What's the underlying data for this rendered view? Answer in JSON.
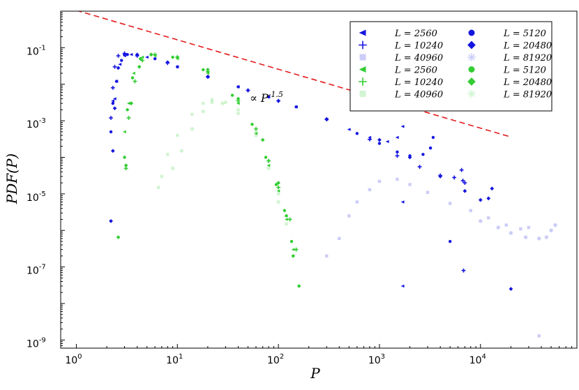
{
  "chart_data": {
    "type": "scatter",
    "title": "",
    "xlabel": "P",
    "ylabel": "PDF(P)",
    "x_scale": "log",
    "y_scale": "log",
    "xlim": [
      0.7,
      90000
    ],
    "ylim": [
      6e-10,
      1
    ],
    "grid": false,
    "legend_position": "top-right",
    "x_ticks": [
      {
        "value": 1,
        "base": "10",
        "exp": "0"
      },
      {
        "value": 10,
        "base": "10",
        "exp": "1"
      },
      {
        "value": 100,
        "base": "10",
        "exp": "2"
      },
      {
        "value": 1000,
        "base": "10",
        "exp": "3"
      },
      {
        "value": 10000,
        "base": "10",
        "exp": "4"
      }
    ],
    "y_ticks": [
      {
        "value": 0.1,
        "base": "10",
        "exp": "-1"
      },
      {
        "value": 0.001,
        "base": "10",
        "exp": "-3"
      },
      {
        "value": 1e-05,
        "base": "10",
        "exp": "-5"
      },
      {
        "value": 1e-07,
        "base": "10",
        "exp": "-7"
      },
      {
        "value": 1e-09,
        "base": "10",
        "exp": "-9"
      }
    ],
    "reference_line": {
      "label": "∝ P^-1.5",
      "prefix": "∝ P",
      "exponent": "-1.5",
      "x": [
        1,
        20000
      ],
      "y": [
        1.05,
        0.00036
      ],
      "color": "#e41a1c"
    },
    "colors": {
      "blue": "#1515e0",
      "green": "#32cd32"
    },
    "series": [
      {
        "name": "L = 2560",
        "group": "blue",
        "marker": "triangle-left",
        "opacity": 1.0,
        "points": [
          [
            2.3,
            0.0035
          ],
          [
            2.4,
            0.004
          ],
          [
            2.5,
            0.012
          ],
          [
            2.7,
            0.035
          ],
          [
            3.0,
            0.06
          ],
          [
            3.5,
            0.065
          ],
          [
            5,
            0.055
          ],
          [
            10,
            0.03
          ],
          [
            20,
            0.016
          ],
          [
            40,
            0.0085
          ],
          [
            80,
            0.0045
          ],
          [
            150,
            0.0024
          ],
          [
            300,
            0.0011
          ],
          [
            500,
            0.00058
          ],
          [
            800,
            0.00035
          ],
          [
            1200,
            0.00027
          ],
          [
            1500,
            0.00035
          ],
          [
            1700,
            0.0007
          ],
          [
            1750,
            0.0025
          ],
          [
            1700,
            6e-06
          ],
          [
            1700,
            3e-08
          ]
        ]
      },
      {
        "name": "L = 5120",
        "group": "blue",
        "marker": "circle",
        "opacity": 1.0,
        "points": [
          [
            2.2,
            0.0005
          ],
          [
            2.3,
            0.003
          ],
          [
            2.5,
            0.012
          ],
          [
            2.8,
            0.045
          ],
          [
            3.2,
            0.065
          ],
          [
            4,
            0.062
          ],
          [
            6,
            0.05
          ],
          [
            10,
            0.03
          ],
          [
            20,
            0.016
          ],
          [
            40,
            0.0085
          ],
          [
            80,
            0.0045
          ],
          [
            150,
            0.0024
          ],
          [
            300,
            0.0011
          ],
          [
            600,
            0.00045
          ],
          [
            1000,
            0.00024
          ],
          [
            1500,
            0.00014
          ],
          [
            2000,
            0.00011
          ],
          [
            2700,
            0.00012
          ],
          [
            3200,
            0.00018
          ],
          [
            3400,
            0.00035
          ],
          [
            5000,
            5e-07
          ]
        ]
      },
      {
        "name": "L = 10240",
        "group": "blue",
        "marker": "plus",
        "opacity": 1.0,
        "points": [
          [
            2.2,
            0.0012
          ],
          [
            2.3,
            0.008
          ],
          [
            2.4,
            0.03
          ],
          [
            2.6,
            0.06
          ],
          [
            3,
            0.07
          ],
          [
            4,
            0.06
          ],
          [
            8,
            0.038
          ],
          [
            20,
            0.016
          ],
          [
            50,
            0.0068
          ],
          [
            100,
            0.0035
          ],
          [
            300,
            0.0011
          ],
          [
            800,
            0.00031
          ],
          [
            1500,
            0.00011
          ],
          [
            2500,
            5.5e-05
          ],
          [
            4000,
            3.2e-05
          ],
          [
            5500,
            2.8e-05
          ],
          [
            6500,
            4.5e-05
          ],
          [
            6700,
            2.3e-05
          ],
          [
            7000,
            2e-05
          ],
          [
            6800,
            8e-08
          ]
        ]
      },
      {
        "name": "L = 20480",
        "group": "blue",
        "marker": "diamond",
        "opacity": 1.0,
        "points": [
          [
            2.2,
            1.8e-06
          ],
          [
            2.3,
            0.00015
          ],
          [
            2.4,
            0.0022
          ],
          [
            2.6,
            0.028
          ],
          [
            3,
            0.065
          ],
          [
            4,
            0.065
          ],
          [
            8,
            0.04
          ],
          [
            20,
            0.016
          ],
          [
            50,
            0.0068
          ],
          [
            100,
            0.0035
          ],
          [
            300,
            0.0011
          ],
          [
            1000,
            0.0003
          ],
          [
            2000,
            0.0001
          ],
          [
            4000,
            3e-05
          ],
          [
            7000,
            1.2e-05
          ],
          [
            10000,
            6.8e-06
          ],
          [
            12000,
            7.5e-06
          ],
          [
            13000,
            1.4e-05
          ],
          [
            20000,
            2.5e-08
          ]
        ]
      },
      {
        "name": "L = 40960",
        "group": "blue",
        "marker": "square",
        "opacity": 0.22,
        "points": [
          [
            300,
            2e-07
          ],
          [
            400,
            6e-07
          ],
          [
            500,
            2.5e-06
          ],
          [
            600,
            6e-06
          ],
          [
            800,
            1.3e-05
          ],
          [
            1000,
            2.2e-05
          ],
          [
            1500,
            2.5e-05
          ],
          [
            2000,
            1.8e-05
          ],
          [
            3000,
            1.1e-05
          ],
          [
            5000,
            5.5e-06
          ],
          [
            8000,
            3.5e-06
          ],
          [
            12000,
            2.2e-06
          ],
          [
            18000,
            1.4e-06
          ],
          [
            25000,
            1.1e-06
          ],
          [
            30000,
            1.2e-06
          ],
          [
            38000,
            1.3e-09
          ]
        ]
      },
      {
        "name": "L = 81920",
        "group": "blue",
        "marker": "asterisk",
        "opacity": 0.22,
        "points": [
          [
            10000,
            1.8e-06
          ],
          [
            15000,
            1.2e-06
          ],
          [
            20000,
            8.5e-07
          ],
          [
            28000,
            6.5e-07
          ],
          [
            38000,
            6e-07
          ],
          [
            45000,
            6.5e-07
          ],
          [
            50000,
            1e-06
          ],
          [
            55000,
            1.4e-06
          ]
        ]
      },
      {
        "name": "L = 2560",
        "group": "green",
        "marker": "triangle-left",
        "opacity": 1.0,
        "points": [
          [
            3.0,
            0.0005
          ],
          [
            3.3,
            0.003
          ],
          [
            3.7,
            0.02
          ],
          [
            4.5,
            0.055
          ],
          [
            6,
            0.06
          ],
          [
            10,
            0.05
          ],
          [
            20,
            0.02
          ],
          [
            40,
            0.003
          ],
          [
            60,
            0.00045
          ],
          [
            80,
            6e-05
          ],
          [
            100,
            1.2e-05
          ],
          [
            120,
            2e-06
          ],
          [
            140,
            3e-07
          ]
        ]
      },
      {
        "name": "L = 5120",
        "group": "green",
        "marker": "circle",
        "opacity": 1.0,
        "points": [
          [
            3.0,
            0.0001
          ],
          [
            3.2,
            0.002
          ],
          [
            3.6,
            0.015
          ],
          [
            4.3,
            0.05
          ],
          [
            5.5,
            0.065
          ],
          [
            9,
            0.055
          ],
          [
            18,
            0.025
          ],
          [
            35,
            0.005
          ],
          [
            55,
            0.0008
          ],
          [
            75,
            0.0001
          ],
          [
            95,
            1.8e-05
          ],
          [
            115,
            3.5e-06
          ],
          [
            135,
            5e-07
          ]
        ]
      },
      {
        "name": "L = 10240",
        "group": "green",
        "marker": "plus",
        "opacity": 1.0,
        "points": [
          [
            3.1,
            5e-05
          ],
          [
            3.3,
            0.0012
          ],
          [
            3.8,
            0.012
          ],
          [
            4.5,
            0.045
          ],
          [
            6,
            0.065
          ],
          [
            10,
            0.055
          ],
          [
            20,
            0.022
          ],
          [
            40,
            0.0035
          ],
          [
            60,
            0.0006
          ],
          [
            80,
            8e-05
          ],
          [
            100,
            1.5e-05
          ],
          [
            130,
            2e-06
          ],
          [
            150,
            3e-07
          ]
        ]
      },
      {
        "name": "L = 20480",
        "group": "green",
        "marker": "diamond",
        "opacity": 1.0,
        "points": [
          [
            2.6,
            6.5e-07
          ],
          [
            3.1,
            6e-05
          ],
          [
            3.5,
            0.003
          ],
          [
            4.2,
            0.03
          ],
          [
            5.5,
            0.065
          ],
          [
            10,
            0.055
          ],
          [
            20,
            0.025
          ],
          [
            40,
            0.004
          ],
          [
            70,
            0.0003
          ],
          [
            100,
            2e-05
          ],
          [
            120,
            2.5e-06
          ],
          [
            140,
            2e-07
          ],
          [
            160,
            3e-08
          ]
        ]
      },
      {
        "name": "L = 40960",
        "group": "green",
        "marker": "square",
        "opacity": 0.22,
        "points": [
          [
            6.5,
            1.5e-05
          ],
          [
            7,
            3e-05
          ],
          [
            8,
            0.00012
          ],
          [
            10,
            0.0004
          ],
          [
            14,
            0.0015
          ],
          [
            18,
            0.003
          ],
          [
            22,
            0.0038
          ],
          [
            30,
            0.0032
          ],
          [
            40,
            0.002
          ],
          [
            60,
            0.0005
          ],
          [
            80,
            8e-05
          ],
          [
            100,
            1e-05
          ],
          [
            120,
            1.5e-06
          ]
        ]
      },
      {
        "name": "L = 81920",
        "group": "green",
        "marker": "asterisk",
        "opacity": 0.22,
        "points": [
          [
            9,
            5e-05
          ],
          [
            11,
            0.00015
          ],
          [
            14,
            0.0006
          ],
          [
            18,
            0.0018
          ],
          [
            22,
            0.0032
          ],
          [
            28,
            0.003
          ],
          [
            40,
            0.0016
          ],
          [
            60,
            0.0004
          ],
          [
            80,
            5e-05
          ],
          [
            100,
            6e-06
          ]
        ]
      }
    ]
  }
}
